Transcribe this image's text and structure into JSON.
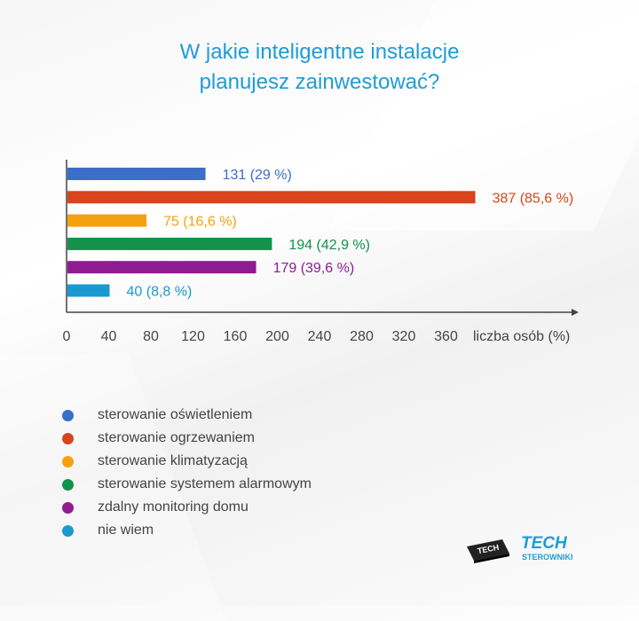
{
  "title_lines": [
    "W jakie inteligentne instalacje",
    "planujesz zainwestować?"
  ],
  "chart_data": {
    "type": "bar",
    "orientation": "horizontal",
    "categories": [
      "sterowanie oświetleniem",
      "sterowanie ogrzewaniem",
      "sterowanie klimatyzacją",
      "sterowanie systemem alarmowym",
      "zdalny monitoring domu",
      "nie wiem"
    ],
    "values": [
      131,
      387,
      75,
      194,
      179,
      40
    ],
    "data_labels": [
      "131 (29 %)",
      "387 (85,6 %)",
      "75 (16,6 %)",
      "194 (42,9 %)",
      "179 (39,6 %)",
      "40 (8,8 %)"
    ],
    "colors": [
      "#3a6ec9",
      "#d9441b",
      "#f5a10f",
      "#12924a",
      "#8f1b91",
      "#1a9ad0"
    ],
    "xticks": [
      0,
      40,
      80,
      120,
      160,
      200,
      240,
      280,
      320,
      360
    ],
    "xlabel": "liczba osób (%)",
    "xlim": [
      0,
      480
    ],
    "legend_position": "bottom-left",
    "grid": false
  },
  "logo": {
    "chip_text": "TECH",
    "brand_text": "TECH",
    "brand_subtext": "STEROWNIKI",
    "brand_color": "#1f9cd6"
  }
}
